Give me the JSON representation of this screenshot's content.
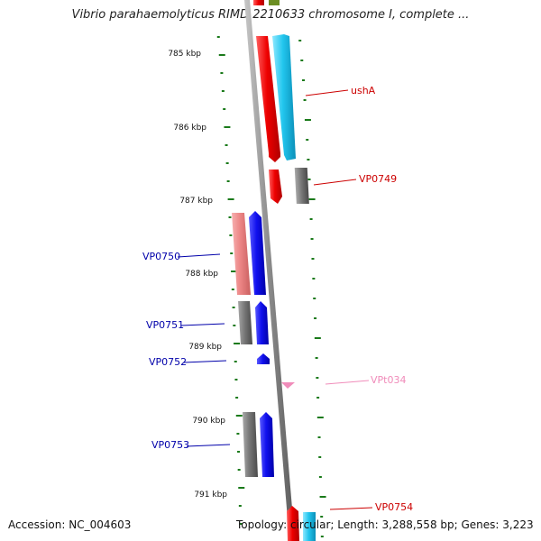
{
  "title": "Vibrio parahaemolyticus RIMD 2210633 chromosome I, complete ...",
  "scale_labels": [
    "785 kbp",
    "786 kbp",
    "787 kbp",
    "788 kbp",
    "789 kbp",
    "790 kbp",
    "791 kbp"
  ],
  "genes": [
    {
      "label": "ushA",
      "color": "#cc0000"
    },
    {
      "label": "VP0749",
      "color": "#cc0000"
    },
    {
      "label": "VP0750",
      "color": "#0000aa"
    },
    {
      "label": "VP0751",
      "color": "#0000aa"
    },
    {
      "label": "VP0752",
      "color": "#0000aa"
    },
    {
      "label": "VPt034",
      "color": "#f08cba"
    },
    {
      "label": "VP0753",
      "color": "#0000aa"
    },
    {
      "label": "VP0754",
      "color": "#cc0000"
    }
  ],
  "footer": {
    "accession": "Accession: NC_004603",
    "summary": "Topology: circular; Length: 3,288,558 bp; Genes: 3,223"
  }
}
